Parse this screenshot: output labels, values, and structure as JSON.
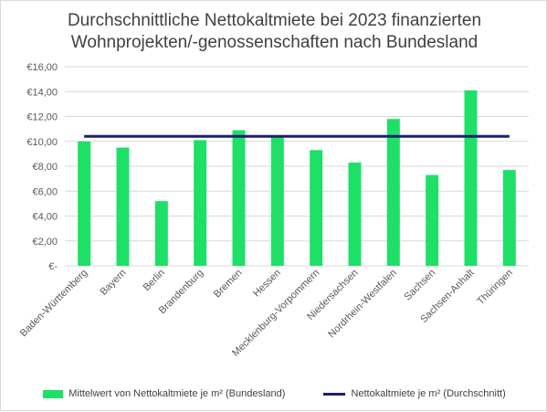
{
  "chart_data": {
    "type": "bar",
    "title_line1": "Durchschnittliche Nettokaltmiete bei 2023 finanzierten",
    "title_line2": "Wohnprojekten/-genossenschaften nach Bundesland",
    "categories": [
      "Baden-Württemberg",
      "Bayern",
      "Berlin",
      "Brandenburg",
      "Bremen",
      "Hessen",
      "Mecklenburg-Vorpommern",
      "Niedersachsen",
      "Nordrhein-Westfalen",
      "Sachsen",
      "Sachsen-Anhalt",
      "Thüringen"
    ],
    "series": [
      {
        "name": "Mittelwert von Nettokaltmiete je m² (Bundesland)",
        "type": "bar",
        "color": "#1ee067",
        "values": [
          10.0,
          9.5,
          5.2,
          10.1,
          10.9,
          10.4,
          9.3,
          8.3,
          11.8,
          7.3,
          14.1,
          7.7
        ]
      },
      {
        "name": "Nettokaltmiete je m² (Durchschnitt)",
        "type": "line",
        "color": "#1b1f6b",
        "value": 10.4
      }
    ],
    "yticks": [
      "€-",
      "€2,00",
      "€4,00",
      "€6,00",
      "€8,00",
      "€10,00",
      "€12,00",
      "€14,00",
      "€16,00"
    ],
    "ylim": [
      0,
      16
    ],
    "grid": true,
    "legend_position": "bottom"
  }
}
